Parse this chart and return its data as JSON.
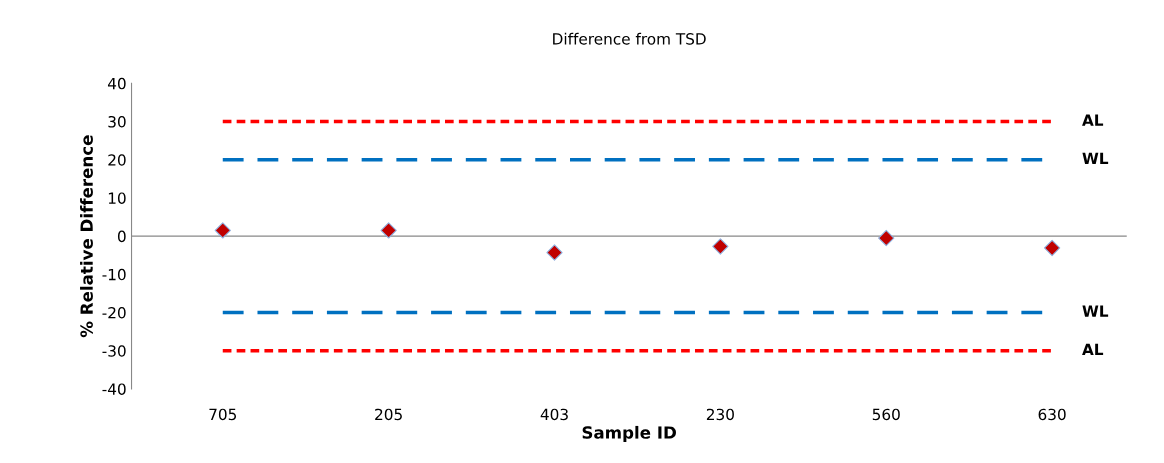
{
  "chart_data": {
    "type": "scatter",
    "title": "Difference from TSD",
    "xlabel": "Sample ID",
    "ylabel": "% Relative Difference",
    "categories": [
      "705",
      "205",
      "403",
      "230",
      "560",
      "630"
    ],
    "series": [
      {
        "color": "#c00000",
        "values": [
          1.5,
          1.5,
          -4.3,
          -2.7,
          -0.5,
          -3.1
        ]
      }
    ],
    "marker": "diamond",
    "ylim": [
      -40,
      40
    ],
    "yticks": [
      -40,
      -30,
      -20,
      -10,
      0,
      10,
      20,
      30,
      40
    ],
    "grid": false,
    "legend": false,
    "ref_lines": [
      {
        "axis": "y",
        "value": 30,
        "label": "AL",
        "color": "#ff0000",
        "line_style": "dotted"
      },
      {
        "axis": "y",
        "value": 20,
        "label": "WL",
        "color": "#0070c0",
        "line_style": "dashed"
      },
      {
        "axis": "y",
        "value": -20,
        "label": "WL",
        "color": "#0070c0",
        "line_style": "dashed"
      },
      {
        "axis": "y",
        "value": -30,
        "label": "AL",
        "color": "#ff0000",
        "line_style": "dotted"
      }
    ]
  }
}
